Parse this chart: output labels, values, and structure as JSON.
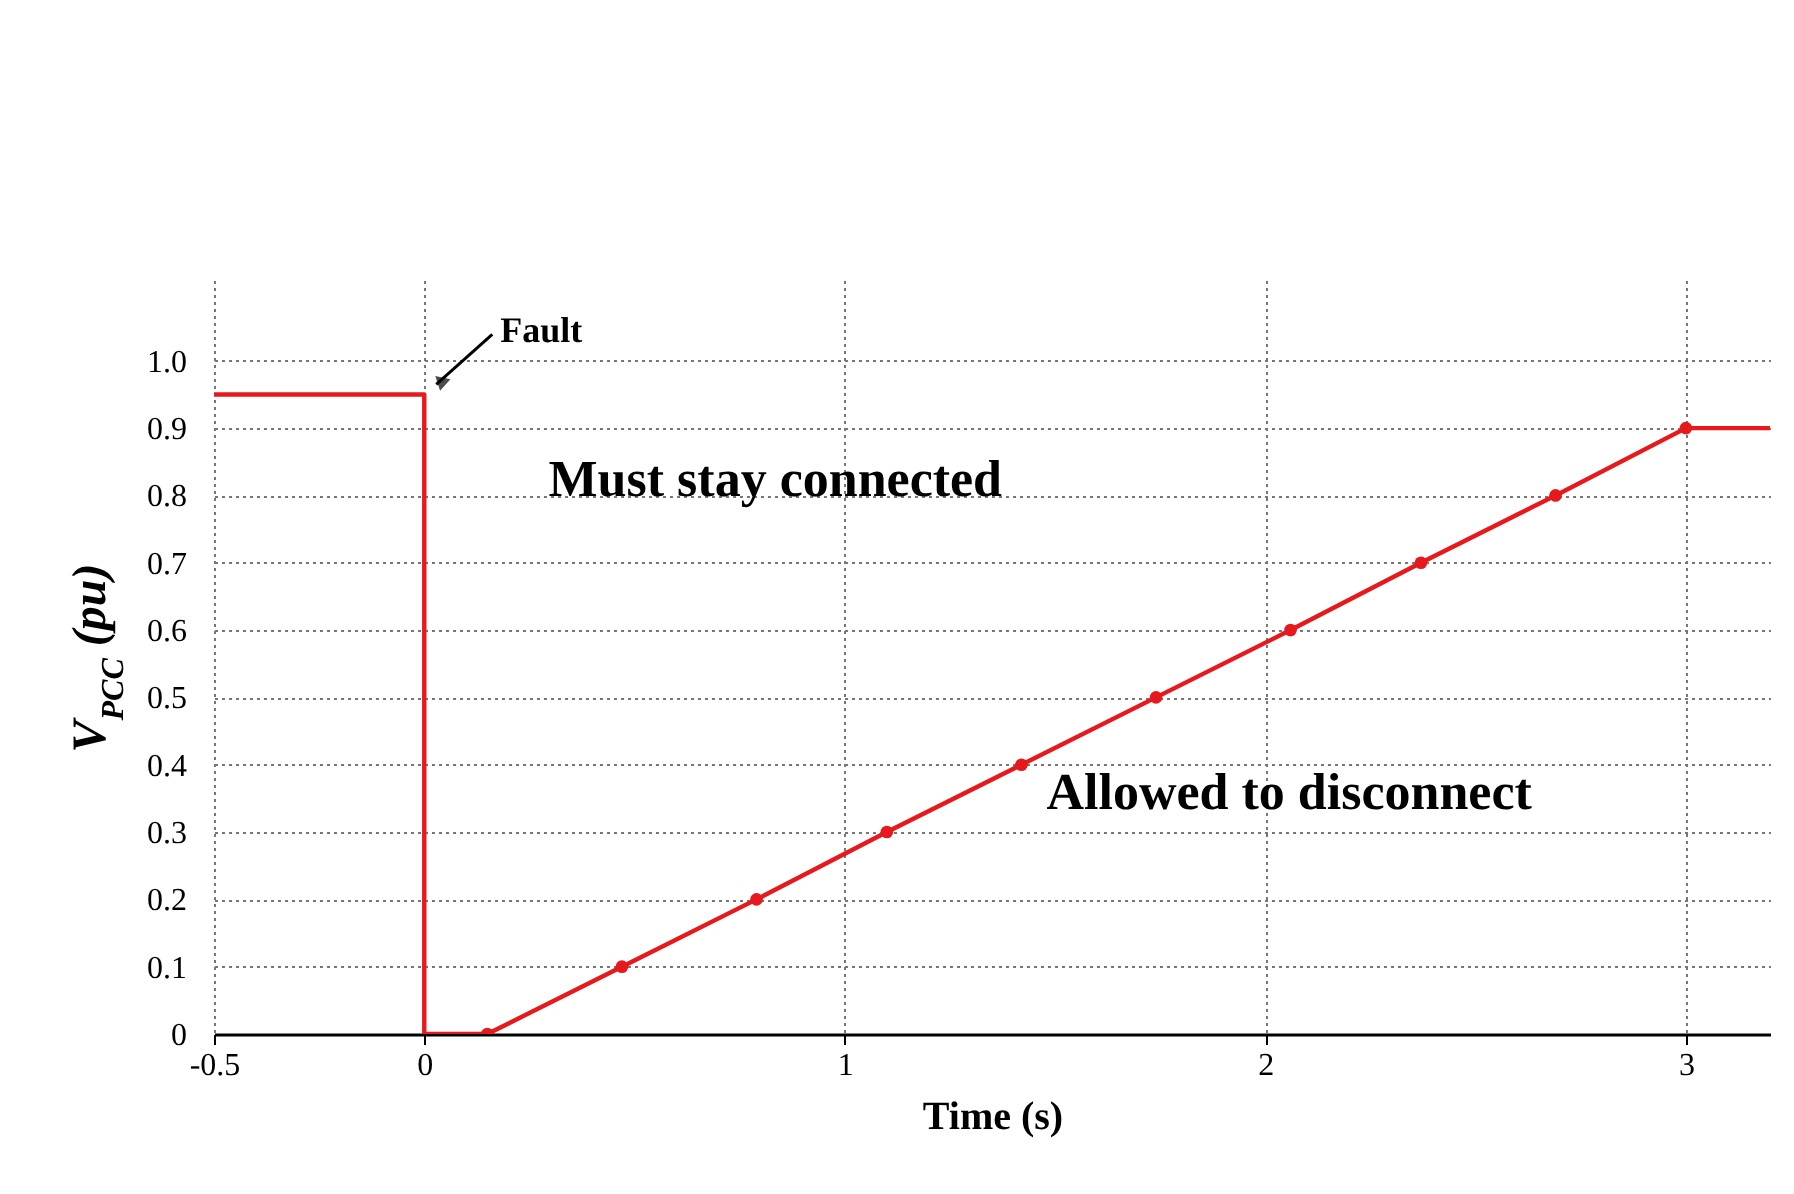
{
  "chart_data": {
    "type": "line",
    "xlabel": "Time (s)",
    "ylabel": "V$_{PCC}$ (pu)",
    "series": [
      {
        "color": "#e8191c",
        "marker": "none",
        "x": [
          -0.5,
          0,
          0,
          0.15
        ],
        "values": [
          0.95,
          0.95,
          0,
          0
        ]
      },
      {
        "color": "#e8191c",
        "marker": "circle",
        "x": [
          0.15,
          0.47,
          0.79,
          1.1,
          1.42,
          1.74,
          2.06,
          2.37,
          2.69,
          3.0
        ],
        "values": [
          0,
          0.1,
          0.2,
          0.3,
          0.4,
          0.5,
          0.6,
          0.7,
          0.8,
          0.9
        ]
      },
      {
        "color": "#e8191c",
        "marker": "none",
        "x": [
          3.0,
          3.2
        ],
        "values": [
          0.9,
          0.9
        ]
      }
    ],
    "xlim": [
      -0.5,
      3.2
    ],
    "xticks": [
      -0.5,
      0,
      1,
      2,
      3
    ],
    "ylim": [
      0,
      1.12
    ],
    "yticks": [
      0,
      0.1,
      0.2,
      0.3,
      0.4,
      0.5,
      0.6,
      0.7,
      0.8,
      0.9,
      {
        "value": 1,
        "label": "1.0"
      }
    ],
    "grid": true,
    "annotations": [
      {
        "text": "Fault",
        "x": 0,
        "y": 0.95
      },
      "Must stay connected",
      "Allowed to disconnect"
    ]
  }
}
